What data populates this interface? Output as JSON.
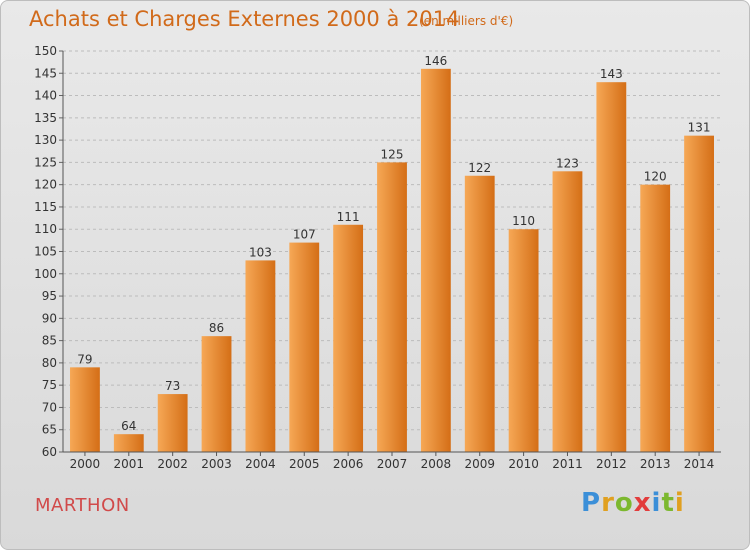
{
  "header": {
    "title": "Achats et Charges Externes 2000 à 2014",
    "subtitle": "(en milliers d'€)"
  },
  "footer": {
    "commune": "MARTHON",
    "logo_text": "Proxiti",
    "logo_letters": [
      {
        "ch": "P",
        "color": "#3b8fd8"
      },
      {
        "ch": "r",
        "color": "#e0a020"
      },
      {
        "ch": "o",
        "color": "#7cb82f"
      },
      {
        "ch": "x",
        "color": "#e23c3c"
      },
      {
        "ch": "i",
        "color": "#3b8fd8"
      },
      {
        "ch": "t",
        "color": "#7cb82f"
      },
      {
        "ch": "i",
        "color": "#e0a020"
      }
    ]
  },
  "colors": {
    "bar_light": "#f6a856",
    "bar_dark": "#d46e16",
    "text": "#333333",
    "accent": "#d16a1a"
  },
  "chart_data": {
    "type": "bar",
    "categories": [
      "2000",
      "2001",
      "2002",
      "2003",
      "2004",
      "2005",
      "2006",
      "2007",
      "2008",
      "2009",
      "2010",
      "2011",
      "2012",
      "2013",
      "2014"
    ],
    "values": [
      79,
      64,
      73,
      86,
      103,
      107,
      111,
      125,
      146,
      122,
      110,
      123,
      143,
      120,
      131
    ],
    "title": "Achats et Charges Externes 2000 à 2014",
    "xlabel": "",
    "ylabel": "",
    "ylim": [
      60,
      150
    ],
    "yticks": [
      60,
      65,
      70,
      75,
      80,
      85,
      90,
      95,
      100,
      105,
      110,
      115,
      120,
      125,
      130,
      135,
      140,
      145,
      150
    ],
    "grid": "horizontal dashed",
    "legend": "none"
  }
}
